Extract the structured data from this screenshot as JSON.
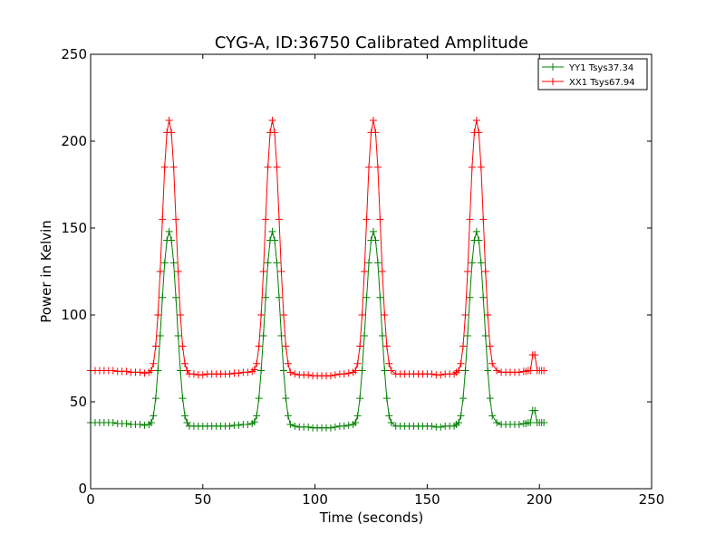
{
  "chart_data": {
    "type": "line",
    "title": "CYG-A, ID:36750 Calibrated Amplitude",
    "xlabel": "Time (seconds)",
    "ylabel": "Power in Kelvin",
    "xlim": [
      0,
      250
    ],
    "ylim": [
      0,
      250
    ],
    "xticks": [
      0,
      50,
      100,
      150,
      200,
      250
    ],
    "yticks": [
      0,
      50,
      100,
      150,
      200,
      250
    ],
    "xtick_labels": [
      "0",
      "50",
      "100",
      "150",
      "200",
      "250"
    ],
    "ytick_labels": [
      "0",
      "50",
      "100",
      "150",
      "200",
      "250"
    ],
    "grid": false,
    "legend": "top-right",
    "series": [
      {
        "name": "YY1 Tsys37.34",
        "color": "#008000",
        "marker": "plus",
        "x": [
          0,
          2,
          4,
          6,
          8,
          10,
          12,
          14,
          16,
          18,
          20,
          22,
          24,
          26,
          27,
          28,
          29,
          30,
          31,
          32,
          33,
          34,
          35,
          36,
          37,
          38,
          39,
          40,
          41,
          42,
          43,
          44,
          46,
          48,
          50,
          52,
          54,
          56,
          58,
          60,
          62,
          64,
          66,
          68,
          70,
          72,
          73,
          74,
          75,
          76,
          77,
          78,
          79,
          80,
          81,
          82,
          83,
          84,
          85,
          86,
          87,
          88,
          89,
          91,
          93,
          95,
          97,
          99,
          101,
          103,
          105,
          107,
          109,
          111,
          113,
          115,
          117,
          118,
          119,
          120,
          121,
          122,
          123,
          124,
          125,
          126,
          127,
          128,
          129,
          130,
          131,
          132,
          133,
          134,
          136,
          138,
          140,
          142,
          144,
          146,
          148,
          150,
          152,
          154,
          156,
          158,
          160,
          162,
          163,
          164,
          165,
          166,
          167,
          168,
          169,
          170,
          171,
          172,
          173,
          174,
          175,
          176,
          177,
          178,
          179,
          181,
          183,
          185,
          187,
          189,
          191,
          193,
          194,
          195,
          196,
          197,
          198,
          199,
          200,
          201,
          202
        ],
        "y": [
          38,
          38,
          38,
          38,
          38,
          38,
          37.5,
          37.5,
          37.5,
          37,
          37,
          37,
          36.5,
          37,
          38,
          42,
          52,
          68,
          88,
          110,
          130,
          143,
          148,
          143,
          130,
          110,
          88,
          68,
          52,
          42,
          38,
          36,
          36,
          36,
          36,
          36,
          36,
          36,
          36,
          36,
          36,
          36.5,
          36.5,
          37,
          37,
          37.5,
          38.5,
          42,
          52,
          68,
          88,
          110,
          130,
          143,
          148,
          143,
          130,
          110,
          88,
          68,
          52,
          42,
          37,
          36,
          35.5,
          35.5,
          35.5,
          35,
          35,
          35,
          35,
          35,
          35.5,
          36,
          36,
          36.5,
          37,
          38,
          42,
          52,
          68,
          88,
          110,
          130,
          143,
          148,
          143,
          130,
          110,
          88,
          68,
          52,
          42,
          38,
          36,
          36,
          36,
          36,
          36,
          36,
          36,
          36,
          36,
          35.5,
          35.5,
          36,
          36,
          36,
          37,
          38,
          42,
          52,
          68,
          88,
          110,
          130,
          143,
          148,
          143,
          130,
          110,
          88,
          68,
          52,
          42,
          38,
          37,
          37,
          37,
          37,
          37,
          37.5,
          37.5,
          38,
          38,
          45,
          45,
          38,
          38,
          38,
          38
        ]
      },
      {
        "name": "XX1 Tsys67.94",
        "color": "#ff0000",
        "marker": "plus",
        "x": [
          0,
          2,
          4,
          6,
          8,
          10,
          12,
          14,
          16,
          18,
          20,
          22,
          24,
          26,
          27,
          28,
          29,
          30,
          31,
          32,
          33,
          34,
          35,
          36,
          37,
          38,
          39,
          40,
          41,
          42,
          43,
          44,
          46,
          48,
          50,
          52,
          54,
          56,
          58,
          60,
          62,
          64,
          66,
          68,
          70,
          72,
          73,
          74,
          75,
          76,
          77,
          78,
          79,
          80,
          81,
          82,
          83,
          84,
          85,
          86,
          87,
          88,
          89,
          91,
          93,
          95,
          97,
          99,
          101,
          103,
          105,
          107,
          109,
          111,
          113,
          115,
          117,
          118,
          119,
          120,
          121,
          122,
          123,
          124,
          125,
          126,
          127,
          128,
          129,
          130,
          131,
          132,
          133,
          134,
          136,
          138,
          140,
          142,
          144,
          146,
          148,
          150,
          152,
          154,
          156,
          158,
          160,
          162,
          163,
          164,
          165,
          166,
          167,
          168,
          169,
          170,
          171,
          172,
          173,
          174,
          175,
          176,
          177,
          178,
          179,
          181,
          183,
          185,
          187,
          189,
          191,
          193,
          194,
          195,
          196,
          197,
          198,
          199,
          200,
          201,
          202
        ],
        "y": [
          68,
          68,
          68,
          68,
          68,
          68,
          67.5,
          67.5,
          67.5,
          67,
          67,
          67,
          66.5,
          67,
          68,
          72,
          82,
          100,
          125,
          155,
          185,
          205,
          212,
          205,
          185,
          155,
          125,
          100,
          82,
          72,
          68,
          66,
          66,
          65.5,
          65.5,
          66,
          66,
          66,
          66,
          66,
          66,
          66.5,
          66.5,
          67,
          67,
          67.5,
          68.5,
          72,
          82,
          100,
          125,
          155,
          185,
          205,
          212,
          205,
          185,
          155,
          125,
          100,
          82,
          72,
          67,
          66,
          65.5,
          65.5,
          65.5,
          65,
          65,
          65,
          65,
          65,
          65.5,
          66,
          66,
          66.5,
          67,
          68,
          72,
          82,
          100,
          125,
          155,
          185,
          205,
          212,
          205,
          185,
          155,
          125,
          100,
          82,
          72,
          68,
          66,
          66,
          66,
          66,
          66,
          66,
          66,
          66,
          66,
          65.5,
          65.5,
          66,
          66,
          66,
          67,
          68,
          72,
          82,
          100,
          125,
          155,
          185,
          205,
          212,
          205,
          185,
          155,
          125,
          100,
          82,
          72,
          68,
          67,
          67,
          67,
          67,
          67,
          67.5,
          67.5,
          68,
          68,
          77,
          77,
          68,
          68,
          68,
          68
        ]
      }
    ]
  }
}
